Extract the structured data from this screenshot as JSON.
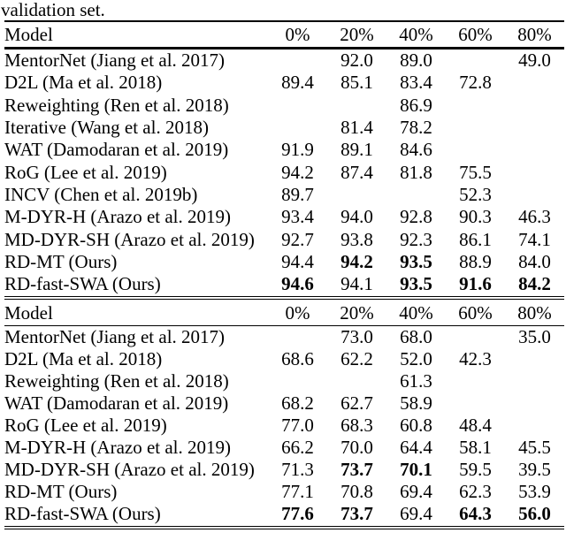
{
  "caption": "validation set.",
  "columns": [
    "Model",
    "0%",
    "20%",
    "40%",
    "60%",
    "80%"
  ],
  "colors": {
    "text": "#000000",
    "background": "#ffffff",
    "rule": "#000000"
  },
  "tables": [
    {
      "name": "top-table",
      "rows": [
        {
          "model": "MentorNet (Jiang et al. 2017)",
          "values": [
            "",
            "92.0",
            "89.0",
            "",
            "49.0"
          ],
          "bold": [
            false,
            false,
            false,
            false,
            false
          ]
        },
        {
          "model": "D2L (Ma et al. 2018)",
          "values": [
            "89.4",
            "85.1",
            "83.4",
            "72.8",
            ""
          ],
          "bold": [
            false,
            false,
            false,
            false,
            false
          ]
        },
        {
          "model": "Reweighting (Ren et al. 2018)",
          "values": [
            "",
            "",
            "86.9",
            "",
            ""
          ],
          "bold": [
            false,
            false,
            false,
            false,
            false
          ]
        },
        {
          "model": "Iterative (Wang et al. 2018)",
          "values": [
            "",
            "81.4",
            "78.2",
            "",
            ""
          ],
          "bold": [
            false,
            false,
            false,
            false,
            false
          ]
        },
        {
          "model": "WAT (Damodaran et al. 2019)",
          "values": [
            "91.9",
            "89.1",
            "84.6",
            "",
            ""
          ],
          "bold": [
            false,
            false,
            false,
            false,
            false
          ]
        },
        {
          "model": "RoG (Lee et al. 2019)",
          "values": [
            "94.2",
            "87.4",
            "81.8",
            "75.5",
            ""
          ],
          "bold": [
            false,
            false,
            false,
            false,
            false
          ]
        },
        {
          "model": "INCV (Chen et al. 2019b)",
          "values": [
            "89.7",
            "",
            "",
            "52.3",
            ""
          ],
          "bold": [
            false,
            false,
            false,
            false,
            false
          ]
        },
        {
          "model": "M-DYR-H (Arazo et al. 2019)",
          "values": [
            "93.4",
            "94.0",
            "92.8",
            "90.3",
            "46.3"
          ],
          "bold": [
            false,
            false,
            false,
            false,
            false
          ]
        },
        {
          "model": "MD-DYR-SH (Arazo et al. 2019)",
          "values": [
            "92.7",
            "93.8",
            "92.3",
            "86.1",
            "74.1"
          ],
          "bold": [
            false,
            false,
            false,
            false,
            false
          ]
        },
        {
          "model": "RD-MT (Ours)",
          "values": [
            "94.4",
            "94.2",
            "93.5",
            "88.9",
            "84.0"
          ],
          "bold": [
            false,
            true,
            true,
            false,
            false
          ]
        },
        {
          "model": "RD-fast-SWA (Ours)",
          "values": [
            "94.6",
            "94.1",
            "93.5",
            "91.6",
            "84.2"
          ],
          "bold": [
            true,
            false,
            true,
            true,
            true
          ]
        }
      ]
    },
    {
      "name": "bottom-table",
      "rows": [
        {
          "model": "MentorNet (Jiang et al. 2017)",
          "values": [
            "",
            "73.0",
            "68.0",
            "",
            "35.0"
          ],
          "bold": [
            false,
            false,
            false,
            false,
            false
          ]
        },
        {
          "model": "D2L (Ma et al. 2018)",
          "values": [
            "68.6",
            "62.2",
            "52.0",
            "42.3",
            ""
          ],
          "bold": [
            false,
            false,
            false,
            false,
            false
          ]
        },
        {
          "model": "Reweighting (Ren et al. 2018)",
          "values": [
            "",
            "",
            "61.3",
            "",
            ""
          ],
          "bold": [
            false,
            false,
            false,
            false,
            false
          ]
        },
        {
          "model": "WAT (Damodaran et al. 2019)",
          "values": [
            "68.2",
            "62.7",
            "58.9",
            "",
            ""
          ],
          "bold": [
            false,
            false,
            false,
            false,
            false
          ]
        },
        {
          "model": "RoG (Lee et al. 2019)",
          "values": [
            "77.0",
            "68.3",
            "60.8",
            "48.4",
            ""
          ],
          "bold": [
            false,
            false,
            false,
            false,
            false
          ]
        },
        {
          "model": "M-DYR-H (Arazo et al. 2019)",
          "values": [
            "66.2",
            "70.0",
            "64.4",
            "58.1",
            "45.5"
          ],
          "bold": [
            false,
            false,
            false,
            false,
            false
          ]
        },
        {
          "model": "MD-DYR-SH (Arazo et al. 2019)",
          "values": [
            "71.3",
            "73.7",
            "70.1",
            "59.5",
            "39.5"
          ],
          "bold": [
            false,
            true,
            true,
            false,
            false
          ]
        },
        {
          "model": "RD-MT (Ours)",
          "values": [
            "77.1",
            "70.8",
            "69.4",
            "62.3",
            "53.9"
          ],
          "bold": [
            false,
            false,
            false,
            false,
            false
          ]
        },
        {
          "model": "RD-fast-SWA (Ours)",
          "values": [
            "77.6",
            "73.7",
            "69.4",
            "64.3",
            "56.0"
          ],
          "bold": [
            true,
            true,
            false,
            true,
            true
          ]
        }
      ]
    }
  ]
}
